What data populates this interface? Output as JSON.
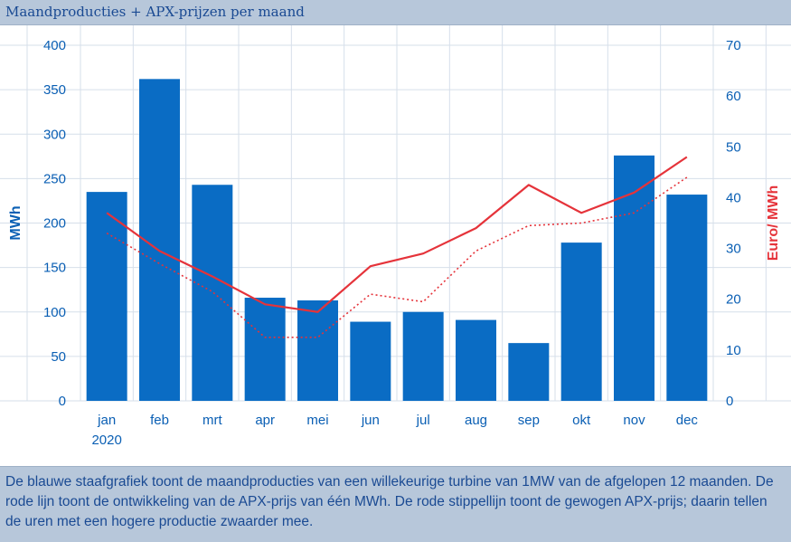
{
  "title": "Maandproducties + APX-prijzen per maand",
  "caption": "De blauwe staafgrafiek toont de maandproducties van een willekeurige turbine van 1MW van de afgelopen 12 maanden. De rode lijn toont de ontwikkeling van de APX-prijs van één MWh. De rode stippellijn toont de gewogen APX-prijs; daarin tellen de uren met een hogere productie zwaarder mee.",
  "colors": {
    "bar": "#0a6cc4",
    "price_line": "#e5333a",
    "header_bg": "#b7c7da",
    "text": "#1a4a93"
  },
  "chart_data": {
    "type": "bar",
    "categories": [
      "jan",
      "feb",
      "mrt",
      "apr",
      "mei",
      "jun",
      "jul",
      "aug",
      "sep",
      "okt",
      "nov",
      "dec"
    ],
    "year_label": "2020",
    "ylabel": "MWh",
    "ylabel_right": "Euro/ MWh",
    "ylim": [
      0,
      400
    ],
    "ylim_right": [
      0,
      70
    ],
    "yticks": [
      0,
      50,
      100,
      150,
      200,
      250,
      300,
      350,
      400
    ],
    "yticks_right": [
      0,
      10,
      20,
      30,
      40,
      50,
      60,
      70
    ],
    "grid": true,
    "series": [
      {
        "axis": "left",
        "style": "bar",
        "values": [
          235,
          362,
          243,
          116,
          113,
          89,
          100,
          91,
          65,
          178,
          276,
          232
        ]
      },
      {
        "axis": "right",
        "style": "line",
        "values": [
          37,
          29.5,
          24.5,
          19,
          17.5,
          26.5,
          29,
          34,
          42.5,
          37,
          41,
          48
        ]
      },
      {
        "axis": "right",
        "style": "dotted",
        "values": [
          33,
          27,
          21.5,
          12.5,
          12.5,
          21,
          19.5,
          29.5,
          34.5,
          35,
          37,
          44
        ]
      }
    ]
  }
}
